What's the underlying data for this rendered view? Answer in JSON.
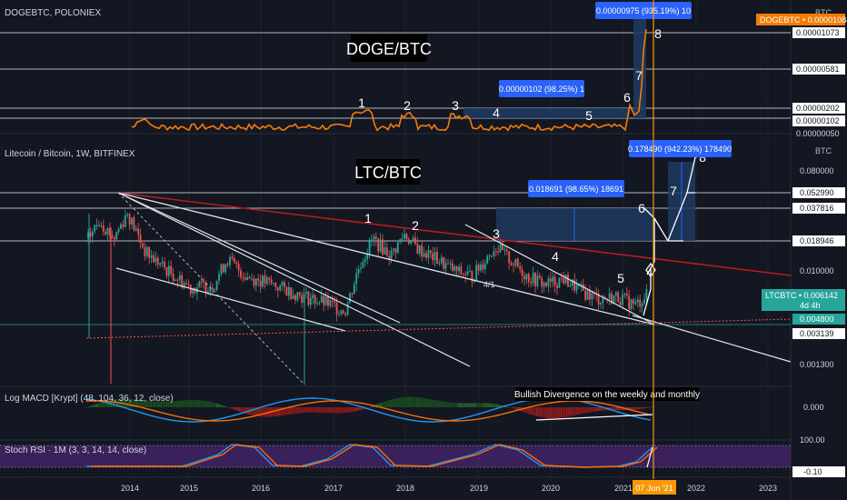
{
  "colors": {
    "background": "#131722",
    "grid": "#1f2433",
    "doge_line": "#f57c00",
    "ltc_up": "#26a69a",
    "ltc_down": "#ef5350",
    "trendline_red": "#b71c1c",
    "callout_blue": "#2962ff",
    "macd_line": "#2196f3",
    "signal_line": "#ff6d00",
    "stoch_k": "#2196f3",
    "stoch_d": "#ff6d00",
    "stoch_band": "#4a2670",
    "current_date": "#ff9800"
  },
  "doge_panel": {
    "title": "DOGEBTC, POLONIEX",
    "label": "DOGE/BTC",
    "currency": "BTC",
    "price_tag": "DOGEBTC • 0.00001084",
    "levels": [
      "0.00001073",
      "0.00000581",
      "0.00000202",
      "0.00000102",
      "0.00000050"
    ],
    "callout_small": "0.00000102 (98.25%) 1",
    "callout_big": "0.00000975 (935.19%) 10",
    "wave_labels": [
      "1",
      "2",
      "3",
      "4",
      "5",
      "6",
      "7",
      "8"
    ]
  },
  "ltc_panel": {
    "title": "Litecoin / Bitcoin, 1W, BITFINEX",
    "label": "LTC/BTC",
    "currency": "BTC",
    "levels": [
      "0.080000",
      "0.052990",
      "0.037816",
      "0.018946",
      "0.010000"
    ],
    "price_tag": "LTCBTC • 0.006142",
    "countdown": "4d 4h",
    "level_low_a": "0.004800",
    "level_low_b": "0.003139",
    "level_bottom": "0.001300",
    "callout_small": "0.018691 (98.65%) 18691",
    "callout_big": "0.178490 (942.23%) 178490",
    "wave_labels": [
      "1",
      "2",
      "3",
      "4",
      "5",
      "6",
      "7",
      "8"
    ],
    "fraction_label": "4/1"
  },
  "macd_panel": {
    "title": "Log MACD [Krypt] (48, 104, 36, 12, close)",
    "value": "0.000",
    "annotation": "Bullish Divergence on the weekly and monthly"
  },
  "stoch_panel": {
    "title": "Stoch RSI · 1M (3, 3, 14, 14, close)",
    "upper": "100.00",
    "lower": "-0.10"
  },
  "time_axis": {
    "years": [
      "2014",
      "2015",
      "2016",
      "2017",
      "2018",
      "2019",
      "2020",
      "2021",
      "2022",
      "2023"
    ],
    "current_date": "07 Jun '21"
  },
  "chart_data": [
    {
      "type": "line",
      "title": "DOGEBTC, POLONIEX",
      "series": [
        {
          "name": "DOGEBTC",
          "x": [
            "2014",
            "2015",
            "2016",
            "2017",
            "2018",
            "2019",
            "2020",
            "2021",
            "2021-06-07"
          ],
          "values": [
            8e-07,
            5e-07,
            4e-07,
            5e-07,
            8e-07,
            5e-07,
            4e-07,
            6e-07,
            1.084e-05
          ]
        }
      ]
    },
    {
      "type": "line",
      "title": "Litecoin / Bitcoin, 1W, BITFINEX",
      "ylim": [
        0.0013,
        0.08
      ],
      "series": [
        {
          "name": "LTCBTC",
          "x": [
            "2014",
            "2015",
            "2016",
            "2017",
            "2018",
            "2019",
            "2020",
            "2021",
            "2021-06-07"
          ],
          "values": [
            0.025,
            0.008,
            0.007,
            0.0045,
            0.015,
            0.012,
            0.0075,
            0.0048,
            0.006142
          ]
        }
      ]
    }
  ]
}
